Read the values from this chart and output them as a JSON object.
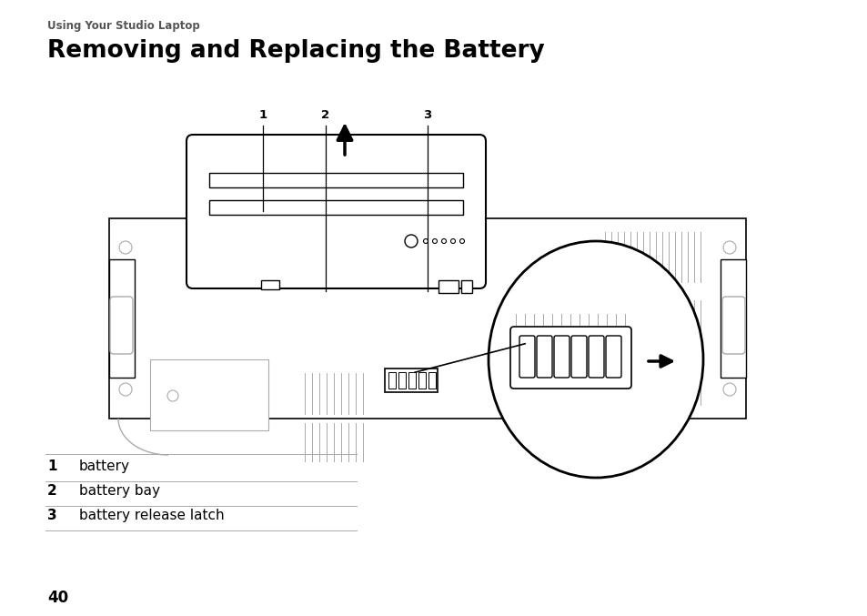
{
  "title": "Removing and Replacing the Battery",
  "subtitle": "Using Your Studio Laptop",
  "page_number": "40",
  "labels": [
    {
      "num": "1",
      "text": "battery"
    },
    {
      "num": "2",
      "text": "battery bay"
    },
    {
      "num": "3",
      "text": "battery release latch"
    }
  ],
  "bg": "#ffffff",
  "lc": "#000000",
  "mg": "#aaaaaa",
  "dg": "#444444",
  "lg": "#dddddd"
}
